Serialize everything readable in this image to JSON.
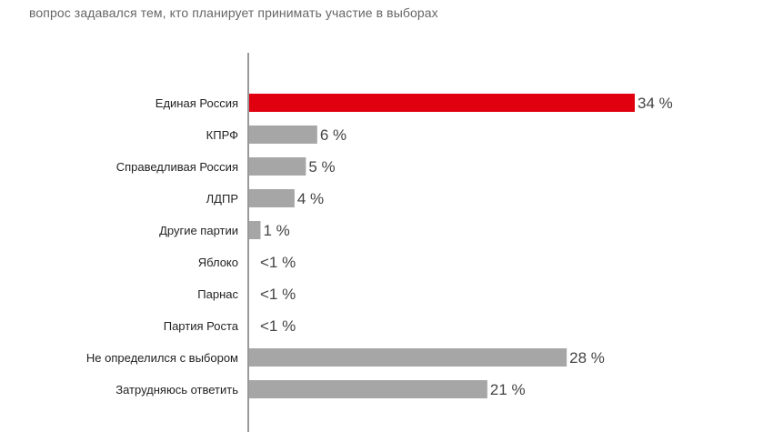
{
  "subtitle": "вопрос задавался тем, кто планирует принимать участие в выборах",
  "colors": {
    "highlight": "#e0000f",
    "bar": "#a6a6a6",
    "axis": "#333333"
  },
  "chart_data": {
    "type": "bar",
    "orientation": "horizontal",
    "title": "",
    "subtitle": "вопрос задавался тем, кто планирует принимать участие в выборах",
    "xlabel": "",
    "ylabel": "",
    "grid": false,
    "legend": "none",
    "xlim": [
      0,
      34
    ],
    "categories": [
      "Единая Россия",
      "КПРФ",
      "Справедливая Россия",
      "ЛДПР",
      "Другие партии",
      "Яблоко",
      "Парнас",
      "Партия Роста",
      "Не определился с выбором",
      "Затрудняюсь ответить"
    ],
    "values": [
      34,
      6,
      5,
      4,
      1,
      0,
      0,
      0,
      28,
      21
    ],
    "value_labels": [
      "34 %",
      "6 %",
      "5 %",
      "4 %",
      "1 %",
      "<1 %",
      "<1 %",
      "<1 %",
      "28 %",
      "21 %"
    ],
    "highlight_index": 0
  }
}
